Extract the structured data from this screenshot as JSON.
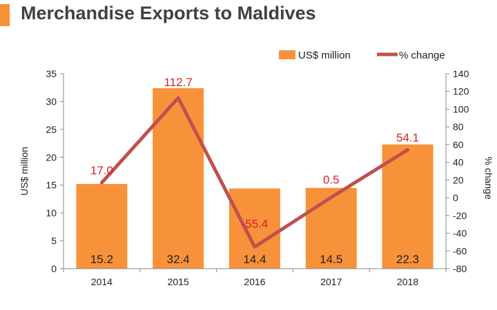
{
  "title": "Merchandise Exports to Maldives",
  "colors": {
    "bar": "#f7923a",
    "line": "#c0504d",
    "pct_label": "#e02020",
    "title_accent": "#f7923a"
  },
  "chart_data": {
    "type": "bar",
    "title": "Merchandise Exports to Maldives",
    "categories": [
      "2014",
      "2015",
      "2016",
      "2017",
      "2018"
    ],
    "series": [
      {
        "name": "US$ million",
        "type": "bar",
        "axis": "left",
        "values": [
          15.2,
          32.4,
          14.4,
          14.5,
          22.3
        ]
      },
      {
        "name": "% change",
        "type": "line",
        "axis": "right",
        "values": [
          17.0,
          112.7,
          -55.4,
          0.5,
          54.1
        ],
        "labels": [
          "17.0",
          "112.7",
          "-55.4",
          "0.5",
          "54.1"
        ]
      }
    ],
    "bar_labels": [
      "15.2",
      "32.4",
      "14.4",
      "14.5",
      "22.3"
    ],
    "ylabel": "US$ million",
    "y2label": "% change",
    "ylim": [
      0,
      35
    ],
    "yticks": [
      "0",
      "5",
      "10",
      "15",
      "20",
      "25",
      "30",
      "35"
    ],
    "y2lim": [
      -80,
      140
    ],
    "y2ticks": [
      "-80",
      "-60",
      "-40",
      "-20",
      "0",
      "20",
      "40",
      "60",
      "80",
      "100",
      "120",
      "140"
    ],
    "grid": false,
    "legend": "top-right"
  }
}
